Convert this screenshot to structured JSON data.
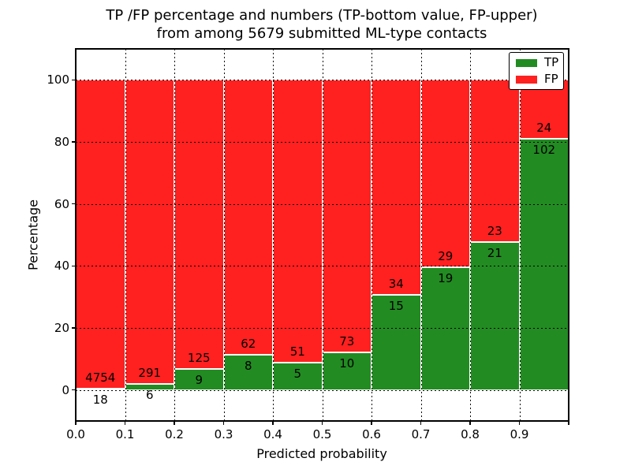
{
  "chart_data": {
    "type": "bar",
    "stacked": true,
    "title_line1": "TP /FP percentage and numbers (TP-bottom value, FP-upper)",
    "title_line2": "from among 5679 submitted ML-type contacts",
    "title": "TP /FP percentage and numbers (TP-bottom value, FP-upper) from among 5679 submitted ML-type contacts",
    "total_contacts": 5679,
    "xlabel": "Predicted probability",
    "ylabel": "Percentage",
    "xlim": [
      0.0,
      1.0
    ],
    "ylim": [
      -10,
      110
    ],
    "bin_width": 0.1,
    "bin_starts": [
      0.0,
      0.1,
      0.2,
      0.3,
      0.4,
      0.5,
      0.6,
      0.7,
      0.8,
      0.9
    ],
    "x_tick_labels": [
      "0.0",
      "0.1",
      "0.2",
      "0.3",
      "0.4",
      "0.5",
      "0.6",
      "0.7",
      "0.8",
      "0.9"
    ],
    "y_tick_values": [
      0,
      20,
      40,
      60,
      80,
      100
    ],
    "grid": {
      "visible": true,
      "style": "dotted",
      "color": "#000000"
    },
    "series": [
      {
        "name": "TP",
        "color": "#228b22",
        "counts": [
          18,
          6,
          9,
          8,
          5,
          10,
          15,
          19,
          21,
          102
        ]
      },
      {
        "name": "FP",
        "color": "#ff2020",
        "counts": [
          4754,
          291,
          125,
          62,
          51,
          73,
          34,
          29,
          23,
          24
        ]
      }
    ],
    "tp_percent": [
      0.38,
      2.02,
      6.72,
      11.43,
      8.93,
      12.05,
      30.61,
      39.58,
      47.73,
      80.95
    ],
    "fp_percent": [
      99.62,
      97.98,
      93.28,
      88.57,
      91.07,
      87.95,
      69.39,
      60.42,
      52.27,
      19.05
    ],
    "legend": {
      "position": "upper right",
      "entries": [
        {
          "label": "TP",
          "color": "#228b22"
        },
        {
          "label": "FP",
          "color": "#ff2020"
        }
      ]
    }
  }
}
